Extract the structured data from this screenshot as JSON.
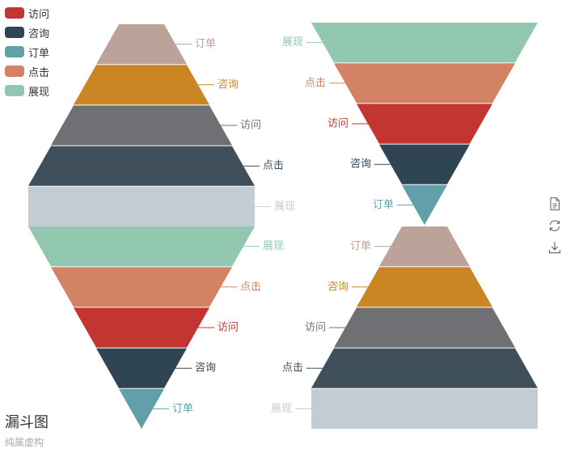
{
  "title": "漏斗图",
  "subtitle": "纯属虚构",
  "legend": [
    {
      "label": "访问",
      "color": "#c23531"
    },
    {
      "label": "咨询",
      "color": "#2f4554"
    },
    {
      "label": "订单",
      "color": "#61a0a8"
    },
    {
      "label": "点击",
      "color": "#d48265"
    },
    {
      "label": "展现",
      "color": "#91c7ae"
    }
  ],
  "toolbox": [
    "data-view-icon",
    "restore-icon",
    "save-image-icon"
  ],
  "chart_data": [
    {
      "type": "funnel",
      "sort": "ascending",
      "label_position": "right",
      "min": 0,
      "max": 100,
      "data": [
        {
          "name": "访问",
          "value": 60,
          "color": "#6e7074"
        },
        {
          "name": "咨询",
          "value": 40,
          "color": "#ca8622"
        },
        {
          "name": "订单",
          "value": 20,
          "color": "#bda29a"
        },
        {
          "name": "点击",
          "value": 80,
          "color": "#3f4f5c"
        },
        {
          "name": "展现",
          "value": 100,
          "color": "#c4ccd3"
        }
      ]
    },
    {
      "type": "funnel",
      "sort": "descending",
      "label_position": "right",
      "min": 0,
      "max": 100,
      "data": [
        {
          "name": "访问",
          "value": 60,
          "color": "#c23531"
        },
        {
          "name": "咨询",
          "value": 40,
          "color": "#2f4554"
        },
        {
          "name": "订单",
          "value": 20,
          "color": "#61a0a8"
        },
        {
          "name": "点击",
          "value": 80,
          "color": "#d48265"
        },
        {
          "name": "展现",
          "value": 100,
          "color": "#91c7ae"
        }
      ]
    },
    {
      "type": "funnel",
      "sort": "descending",
      "label_position": "left",
      "min": 0,
      "max": 100,
      "data": [
        {
          "name": "访问",
          "value": 60,
          "color": "#c23531"
        },
        {
          "name": "咨询",
          "value": 40,
          "color": "#2f4554"
        },
        {
          "name": "订单",
          "value": 20,
          "color": "#61a0a8"
        },
        {
          "name": "点击",
          "value": 80,
          "color": "#d48265"
        },
        {
          "name": "展现",
          "value": 100,
          "color": "#91c7ae"
        }
      ]
    },
    {
      "type": "funnel",
      "sort": "ascending",
      "label_position": "left",
      "min": 0,
      "max": 100,
      "data": [
        {
          "name": "访问",
          "value": 60,
          "color": "#6e7074"
        },
        {
          "name": "咨询",
          "value": 40,
          "color": "#ca8622"
        },
        {
          "name": "订单",
          "value": 20,
          "color": "#bda29a"
        },
        {
          "name": "点击",
          "value": 80,
          "color": "#3f4f5c"
        },
        {
          "name": "展现",
          "value": 100,
          "color": "#c4ccd3"
        }
      ]
    }
  ]
}
